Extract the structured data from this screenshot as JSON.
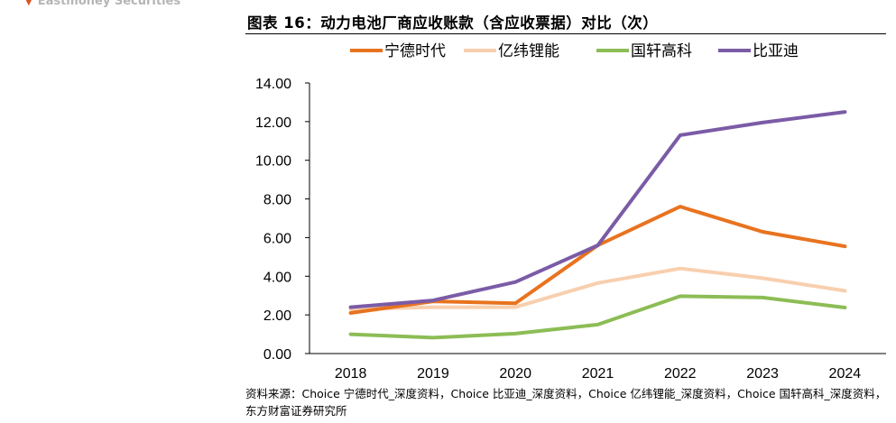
{
  "header": {
    "brand": "Eastmoney Securities",
    "title": "图表 16：动力电池厂商应收账款（含应收票据）对比（次）"
  },
  "chart_data": {
    "type": "line",
    "title": "图表 16：动力电池厂商应收账款（含应收票据）对比（次）",
    "xlabel": "",
    "ylabel": "",
    "x": [
      "2018",
      "2019",
      "2020",
      "2021",
      "2022",
      "2023",
      "2024"
    ],
    "ylim": [
      0,
      14
    ],
    "yticks": [
      "0.00",
      "2.00",
      "4.00",
      "6.00",
      "8.00",
      "10.00",
      "12.00",
      "14.00"
    ],
    "grid": false,
    "legend": "top",
    "series": [
      {
        "name": "宁德时代",
        "color": "#e8731f",
        "values": [
          2.1,
          2.7,
          2.6,
          5.6,
          7.6,
          6.3,
          5.55
        ]
      },
      {
        "name": "亿纬锂能",
        "color": "#f8cfae",
        "values": [
          2.3,
          2.4,
          2.4,
          3.65,
          4.4,
          3.9,
          3.25
        ]
      },
      {
        "name": "国轩高科",
        "color": "#8cbd55",
        "values": [
          1.0,
          0.82,
          1.03,
          1.5,
          2.97,
          2.9,
          2.38
        ]
      },
      {
        "name": "比亚迪",
        "color": "#7b5ba6",
        "values": [
          2.4,
          2.75,
          3.7,
          5.6,
          11.3,
          11.95,
          12.5
        ]
      }
    ]
  },
  "footer": {
    "source": "资料来源：Choice 宁德时代_深度资料，Choice 比亚迪_深度资料，Choice 亿纬锂能_深度资料，Choice 国轩高科_深度资料，东方财富证券研究所"
  }
}
